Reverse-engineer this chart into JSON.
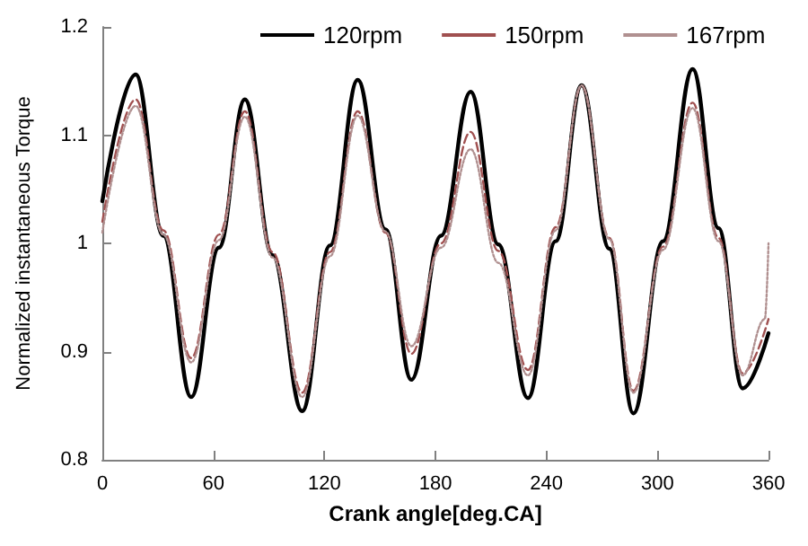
{
  "chart_data": {
    "type": "line",
    "xlabel": "Crank angle[deg.CA]",
    "ylabel": "Normalized instantaneous Torque",
    "x": [
      0,
      18,
      33,
      48,
      63,
      77,
      92,
      108,
      123,
      138,
      153,
      167,
      183,
      199,
      214,
      230,
      245,
      259,
      274,
      287,
      303,
      319,
      333,
      346,
      360
    ],
    "xlim": [
      0,
      360
    ],
    "xticks": [
      0,
      60,
      120,
      180,
      240,
      300,
      360
    ],
    "ylim": [
      0.8,
      1.2
    ],
    "yticks": [
      0.8,
      0.9,
      1,
      1.1,
      1.2
    ],
    "grid": false,
    "legend": "top",
    "marker": "none",
    "series": [
      {
        "name": "120rpm",
        "color": "#000000",
        "line_style": "solid",
        "values": [
          1.039,
          1.156,
          1.007,
          0.858,
          0.996,
          1.133,
          0.989,
          0.845,
          0.998,
          1.151,
          1.013,
          0.874,
          1.007,
          1.14,
          0.999,
          0.857,
          1.002,
          1.146,
          0.995,
          0.843,
          1.002,
          1.161,
          1.014,
          0.866,
          0.917
        ]
      },
      {
        "name": "150rpm",
        "color": "#a05050",
        "line_style": "dashed",
        "values": [
          1.02,
          1.133,
          1.012,
          0.894,
          1.008,
          1.122,
          0.992,
          0.862,
          0.992,
          1.122,
          1.01,
          0.898,
          1.0,
          1.103,
          0.993,
          0.883,
          1.015,
          1.146,
          1.005,
          0.864,
          0.997,
          1.13,
          1.005,
          0.88,
          0.93
        ]
      },
      {
        "name": "167rpm",
        "color": "#b09090",
        "line_style": "dotted",
        "x": [
          0,
          18,
          33,
          48,
          63,
          77,
          92,
          108,
          123,
          138,
          153,
          167,
          183,
          199,
          214,
          230,
          245,
          259,
          274,
          287,
          303,
          319,
          333,
          346,
          358,
          360
        ],
        "values": [
          1.01,
          1.127,
          1.008,
          0.89,
          1.003,
          1.117,
          0.987,
          0.858,
          0.988,
          1.118,
          1.011,
          0.905,
          0.996,
          1.087,
          0.982,
          0.878,
          1.012,
          1.146,
          1.004,
          0.862,
          0.994,
          1.125,
          1.002,
          0.878,
          0.93,
          1.0
        ]
      }
    ]
  }
}
